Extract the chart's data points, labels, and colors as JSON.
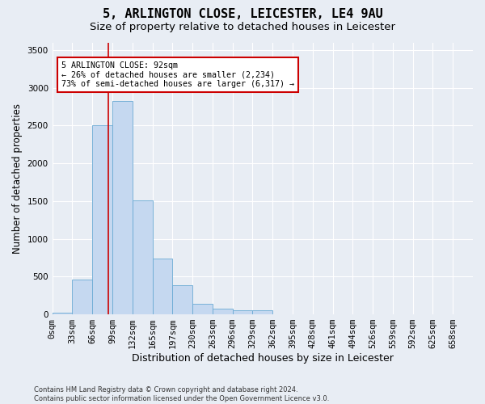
{
  "title_line1": "5, ARLINGTON CLOSE, LEICESTER, LE4 9AU",
  "title_line2": "Size of property relative to detached houses in Leicester",
  "xlabel": "Distribution of detached houses by size in Leicester",
  "ylabel": "Number of detached properties",
  "footnote": "Contains HM Land Registry data © Crown copyright and database right 2024.\nContains public sector information licensed under the Open Government Licence v3.0.",
  "bar_labels": [
    "0sqm",
    "33sqm",
    "66sqm",
    "99sqm",
    "132sqm",
    "165sqm",
    "197sqm",
    "230sqm",
    "263sqm",
    "296sqm",
    "329sqm",
    "362sqm",
    "395sqm",
    "428sqm",
    "461sqm",
    "494sqm",
    "526sqm",
    "559sqm",
    "592sqm",
    "625sqm",
    "658sqm"
  ],
  "bar_values": [
    25,
    465,
    2500,
    2820,
    1510,
    740,
    390,
    140,
    75,
    52,
    52,
    0,
    0,
    0,
    0,
    0,
    0,
    0,
    0,
    0,
    0
  ],
  "bar_color": "#c5d8f0",
  "bar_edgecolor": "#6aaad4",
  "property_line_x": 2.788,
  "property_line_color": "#cc0000",
  "annotation_text": "5 ARLINGTON CLOSE: 92sqm\n← 26% of detached houses are smaller (2,234)\n73% of semi-detached houses are larger (6,317) →",
  "ylim": [
    0,
    3600
  ],
  "yticks": [
    0,
    500,
    1000,
    1500,
    2000,
    2500,
    3000,
    3500
  ],
  "background_color": "#e8edf4",
  "plot_background_color": "#e8edf4",
  "grid_color": "#ffffff",
  "title_fontsize": 11,
  "subtitle_fontsize": 9.5,
  "axis_label_fontsize": 8.5,
  "tick_fontsize": 7.5,
  "footnote_fontsize": 6.0
}
